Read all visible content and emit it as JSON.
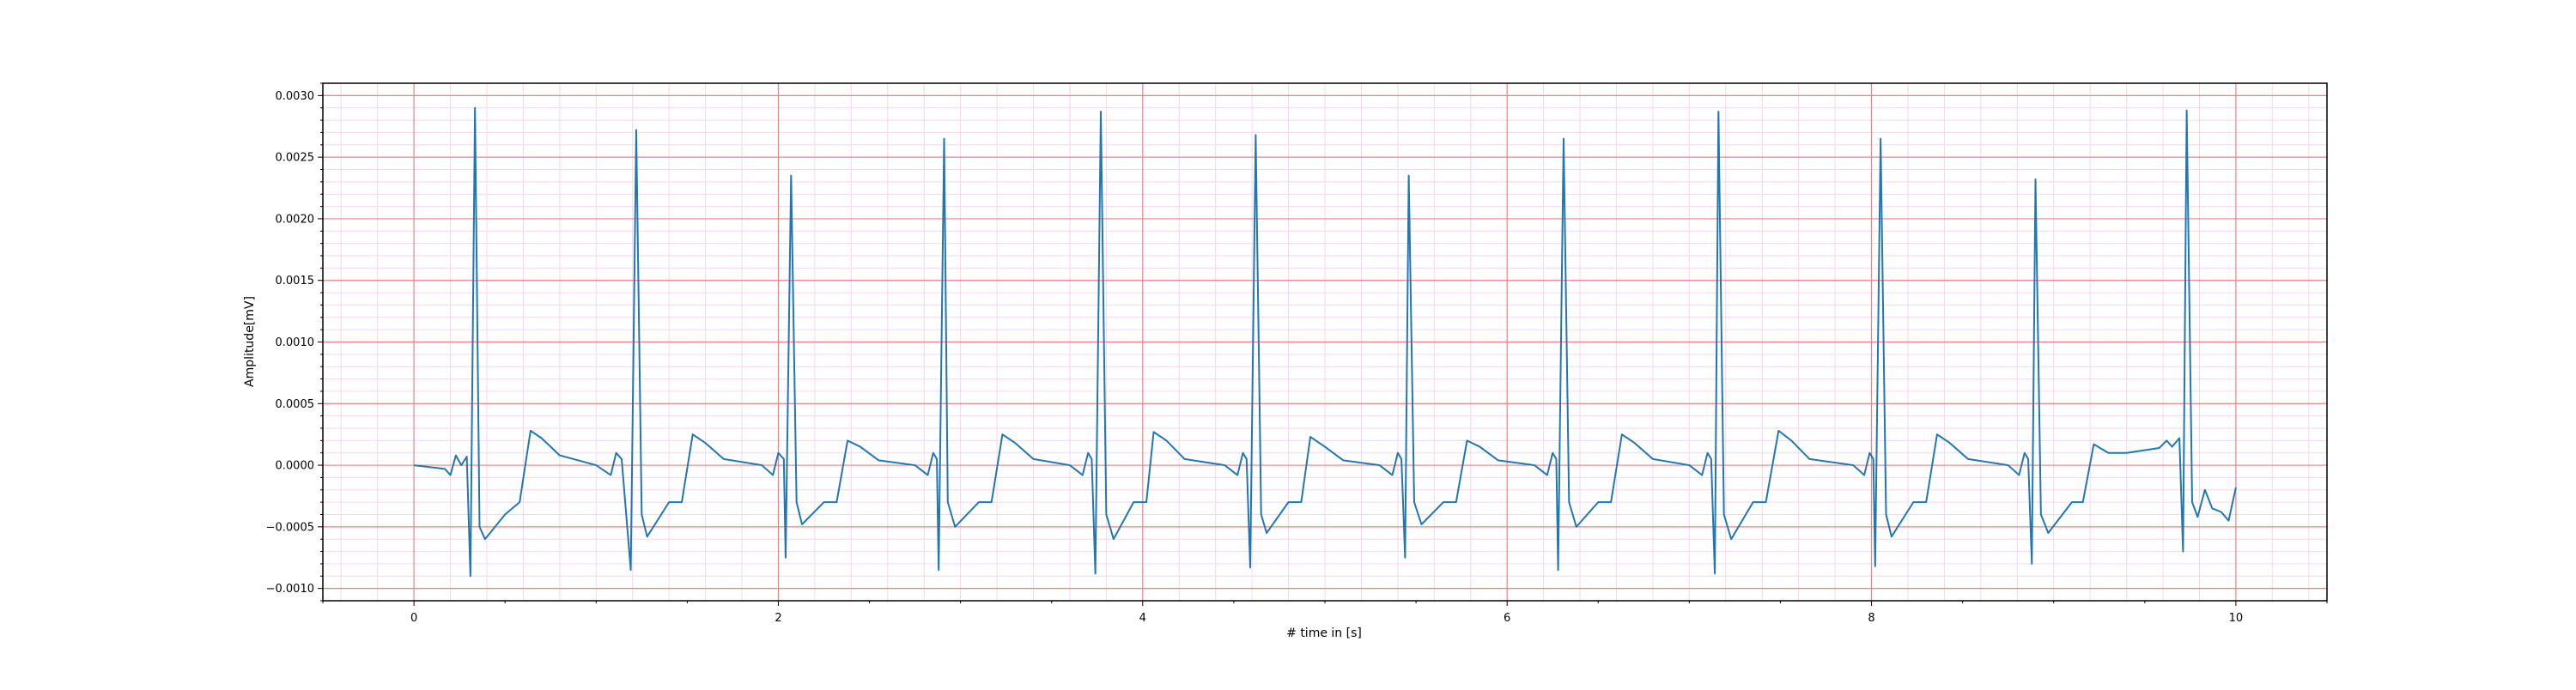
{
  "chart_data": {
    "type": "line",
    "xlabel": "# time in [s]",
    "ylabel": "Amplitude[mV]",
    "xlim": [
      -0.5,
      10.5
    ],
    "ylim": [
      -0.0011,
      0.0031
    ],
    "x_ticks": [
      0,
      2,
      4,
      6,
      8,
      10
    ],
    "x_tick_labels": [
      "0",
      "2",
      "4",
      "6",
      "8",
      "10"
    ],
    "y_ticks": [
      -0.001,
      -0.0005,
      0,
      0.0005,
      0.001,
      0.0015,
      0.002,
      0.0025,
      0.003
    ],
    "y_tick_labels": [
      "−0.0010",
      "−0.0005",
      "0.0000",
      "0.0005",
      "0.0010",
      "0.0015",
      "0.0020",
      "0.0025",
      "0.0030"
    ],
    "grid": "on",
    "colors": {
      "line": "#1f77b4",
      "major_grid": "#f08080",
      "minor_grid": "#f6d6f0"
    },
    "series": [
      {
        "values": [
          [
            0.0,
            0.0
          ],
          [
            0.17,
            -3e-05
          ],
          [
            0.2,
            -8e-05
          ],
          [
            0.23,
            8e-05
          ],
          [
            0.26,
            0.0
          ],
          [
            0.29,
            7e-05
          ],
          [
            0.31,
            -0.0009
          ],
          [
            0.335,
            0.0029
          ],
          [
            0.36,
            -0.0005
          ],
          [
            0.39,
            -0.0006
          ],
          [
            0.5,
            -0.0004
          ],
          [
            0.58,
            -0.0003
          ],
          [
            0.64,
            0.00028
          ],
          [
            0.7,
            0.00022
          ],
          [
            0.8,
            8e-05
          ],
          [
            1.0,
            0.0
          ],
          [
            1.08,
            -8e-05
          ],
          [
            1.11,
            0.0001
          ],
          [
            1.14,
            5e-05
          ],
          [
            1.19,
            -0.00085
          ],
          [
            1.22,
            0.00272
          ],
          [
            1.25,
            -0.0004
          ],
          [
            1.28,
            -0.00058
          ],
          [
            1.4,
            -0.0003
          ],
          [
            1.47,
            -0.0003
          ],
          [
            1.53,
            0.00025
          ],
          [
            1.6,
            0.00018
          ],
          [
            1.7,
            5e-05
          ],
          [
            1.91,
            0.0
          ],
          [
            1.97,
            -8e-05
          ],
          [
            2.0,
            0.0001
          ],
          [
            2.03,
            5e-05
          ],
          [
            2.04,
            -0.00075
          ],
          [
            2.07,
            0.00235
          ],
          [
            2.1,
            -0.0003
          ],
          [
            2.13,
            -0.00048
          ],
          [
            2.25,
            -0.0003
          ],
          [
            2.32,
            -0.0003
          ],
          [
            2.38,
            0.0002
          ],
          [
            2.45,
            0.00015
          ],
          [
            2.55,
            4e-05
          ],
          [
            2.75,
            0.0
          ],
          [
            2.82,
            -8e-05
          ],
          [
            2.85,
            0.0001
          ],
          [
            2.87,
            5e-05
          ],
          [
            2.88,
            -0.00085
          ],
          [
            2.91,
            0.00265
          ],
          [
            2.93,
            -0.0003
          ],
          [
            2.97,
            -0.0005
          ],
          [
            3.1,
            -0.0003
          ],
          [
            3.17,
            -0.0003
          ],
          [
            3.23,
            0.00025
          ],
          [
            3.3,
            0.00018
          ],
          [
            3.4,
            5e-05
          ],
          [
            3.6,
            0.0
          ],
          [
            3.67,
            -8e-05
          ],
          [
            3.7,
            0.0001
          ],
          [
            3.72,
            5e-05
          ],
          [
            3.74,
            -0.00088
          ],
          [
            3.77,
            0.00287
          ],
          [
            3.8,
            -0.0004
          ],
          [
            3.84,
            -0.0006
          ],
          [
            3.95,
            -0.0003
          ],
          [
            4.02,
            -0.0003
          ],
          [
            4.06,
            0.00027
          ],
          [
            4.13,
            0.0002
          ],
          [
            4.23,
            5e-05
          ],
          [
            4.45,
            0.0
          ],
          [
            4.52,
            -8e-05
          ],
          [
            4.55,
            0.0001
          ],
          [
            4.57,
            5e-05
          ],
          [
            4.59,
            -0.00083
          ],
          [
            4.62,
            0.00268
          ],
          [
            4.65,
            -0.0004
          ],
          [
            4.68,
            -0.00055
          ],
          [
            4.8,
            -0.0003
          ],
          [
            4.87,
            -0.0003
          ],
          [
            4.92,
            0.00023
          ],
          [
            5.0,
            0.00015
          ],
          [
            5.1,
            4e-05
          ],
          [
            5.3,
            0.0
          ],
          [
            5.37,
            -8e-05
          ],
          [
            5.4,
            0.0001
          ],
          [
            5.42,
            5e-05
          ],
          [
            5.44,
            -0.00075
          ],
          [
            5.46,
            0.00235
          ],
          [
            5.49,
            -0.0003
          ],
          [
            5.53,
            -0.00048
          ],
          [
            5.65,
            -0.0003
          ],
          [
            5.72,
            -0.0003
          ],
          [
            5.78,
            0.0002
          ],
          [
            5.85,
            0.00015
          ],
          [
            5.95,
            4e-05
          ],
          [
            6.15,
            0.0
          ],
          [
            6.22,
            -8e-05
          ],
          [
            6.25,
            0.0001
          ],
          [
            6.27,
            5e-05
          ],
          [
            6.28,
            -0.00085
          ],
          [
            6.31,
            0.00265
          ],
          [
            6.34,
            -0.0003
          ],
          [
            6.38,
            -0.0005
          ],
          [
            6.5,
            -0.0003
          ],
          [
            6.57,
            -0.0003
          ],
          [
            6.63,
            0.00025
          ],
          [
            6.7,
            0.00018
          ],
          [
            6.8,
            5e-05
          ],
          [
            7.0,
            0.0
          ],
          [
            7.07,
            -8e-05
          ],
          [
            7.1,
            0.0001
          ],
          [
            7.12,
            5e-05
          ],
          [
            7.14,
            -0.00088
          ],
          [
            7.16,
            0.00287
          ],
          [
            7.19,
            -0.0004
          ],
          [
            7.23,
            -0.0006
          ],
          [
            7.35,
            -0.0003
          ],
          [
            7.42,
            -0.0003
          ],
          [
            7.49,
            0.00028
          ],
          [
            7.56,
            0.0002
          ],
          [
            7.66,
            5e-05
          ],
          [
            7.9,
            0.0
          ],
          [
            7.96,
            -8e-05
          ],
          [
            7.99,
            0.0001
          ],
          [
            8.01,
            5e-05
          ],
          [
            8.02,
            -0.00082
          ],
          [
            8.05,
            0.00265
          ],
          [
            8.08,
            -0.0004
          ],
          [
            8.11,
            -0.00058
          ],
          [
            8.23,
            -0.0003
          ],
          [
            8.3,
            -0.0003
          ],
          [
            8.36,
            0.00025
          ],
          [
            8.43,
            0.00018
          ],
          [
            8.53,
            5e-05
          ],
          [
            8.75,
            0.0
          ],
          [
            8.81,
            -8e-05
          ],
          [
            8.84,
            0.0001
          ],
          [
            8.86,
            5e-05
          ],
          [
            8.88,
            -0.0008
          ],
          [
            8.9,
            0.00232
          ],
          [
            8.93,
            -0.0004
          ],
          [
            8.97,
            -0.00055
          ],
          [
            9.1,
            -0.0003
          ],
          [
            9.16,
            -0.0003
          ],
          [
            9.22,
            0.00017
          ],
          [
            9.3,
            0.0001
          ],
          [
            9.4,
            0.0001
          ],
          [
            9.58,
            0.00014
          ],
          [
            9.62,
            0.0002
          ],
          [
            9.65,
            0.00015
          ],
          [
            9.69,
            0.00022
          ],
          [
            9.71,
            -0.0007
          ],
          [
            9.73,
            0.00288
          ],
          [
            9.76,
            -0.0003
          ],
          [
            9.79,
            -0.00042
          ],
          [
            9.83,
            -0.0002
          ],
          [
            9.87,
            -0.00035
          ],
          [
            9.92,
            -0.00038
          ],
          [
            9.96,
            -0.00045
          ],
          [
            10.0,
            -0.00018
          ]
        ]
      }
    ]
  }
}
